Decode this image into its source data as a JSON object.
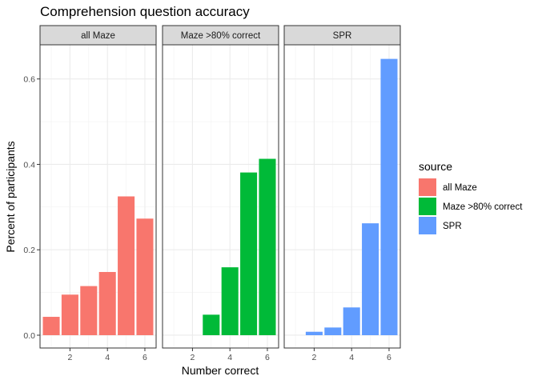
{
  "chart_data": {
    "type": "bar",
    "title": "Comprehension question accuracy",
    "xlabel": "Number correct",
    "ylabel": "Percent of participants",
    "xlim": [
      0.4,
      6.6
    ],
    "ylim": [
      -0.03,
      0.68
    ],
    "x_ticks": [
      2,
      4,
      6
    ],
    "y_ticks": [
      0.0,
      0.2,
      0.4,
      0.6
    ],
    "y_tick_labels": [
      "0.0",
      "0.2",
      "0.4",
      "0.6"
    ],
    "grid": true,
    "legend": {
      "title": "source",
      "position": "right"
    },
    "facets": [
      {
        "label": "all Maze",
        "series": "all Maze"
      },
      {
        "label": "Maze >80% correct",
        "series": "Maze >80% correct"
      },
      {
        "label": "SPR",
        "series": "SPR"
      }
    ],
    "series": [
      {
        "name": "all Maze",
        "color": "#F8766D",
        "x": [
          1,
          2,
          3,
          4,
          5,
          6
        ],
        "values": [
          0.043,
          0.095,
          0.115,
          0.148,
          0.325,
          0.273
        ]
      },
      {
        "name": "Maze >80% correct",
        "color": "#00BA38",
        "x": [
          3,
          4,
          5,
          6
        ],
        "values": [
          0.048,
          0.159,
          0.381,
          0.413
        ]
      },
      {
        "name": "SPR",
        "color": "#619CFF",
        "x": [
          2,
          3,
          4,
          5,
          6
        ],
        "values": [
          0.008,
          0.018,
          0.065,
          0.262,
          0.647
        ]
      }
    ]
  }
}
